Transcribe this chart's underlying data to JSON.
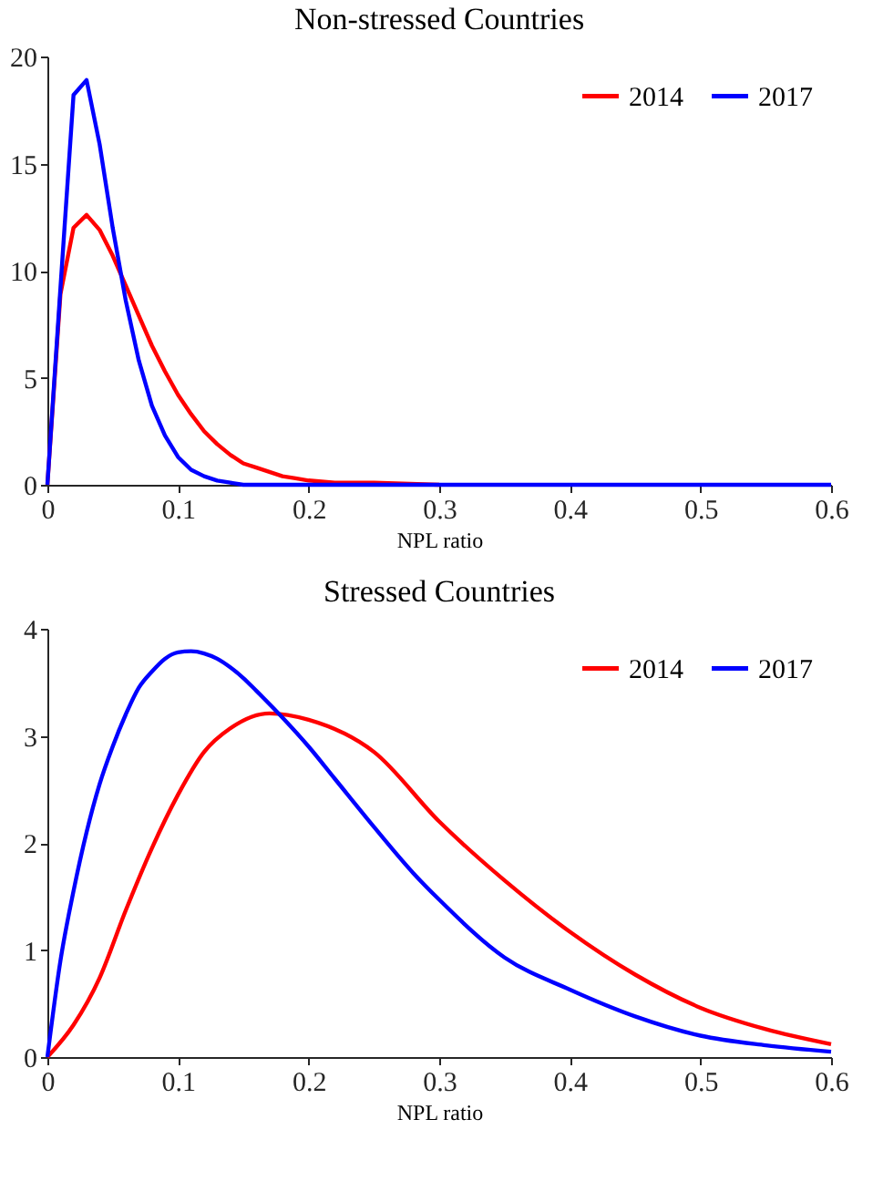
{
  "chart_data": [
    {
      "type": "line",
      "title": "Non-stressed Countries",
      "xlabel": "NPL ratio",
      "xlim": [
        0,
        0.6
      ],
      "xticks": [
        0,
        0.1,
        0.2,
        0.3,
        0.4,
        0.5,
        0.6
      ],
      "ylim": [
        0,
        20
      ],
      "yticks": [
        0,
        5,
        10,
        15,
        20
      ],
      "grid": false,
      "legend": "top right",
      "line_style": "solid",
      "x": [
        0,
        0.01,
        0.02,
        0.03,
        0.04,
        0.05,
        0.06,
        0.07,
        0.08,
        0.09,
        0.1,
        0.11,
        0.12,
        0.13,
        0.14,
        0.15,
        0.16,
        0.17,
        0.18,
        0.19,
        0.2,
        0.22,
        0.25,
        0.3,
        0.4,
        0.5,
        0.6
      ],
      "series": [
        {
          "name": "2014",
          "color": "#ff0000",
          "values": [
            0,
            8.9,
            12.0,
            12.6,
            11.9,
            10.7,
            9.3,
            7.9,
            6.5,
            5.3,
            4.2,
            3.3,
            2.5,
            1.9,
            1.4,
            1.0,
            0.8,
            0.6,
            0.4,
            0.3,
            0.2,
            0.1,
            0.1,
            0,
            null,
            null,
            null
          ]
        },
        {
          "name": "2017",
          "color": "#0000ff",
          "values": [
            0,
            9.2,
            18.2,
            18.9,
            15.9,
            12.0,
            8.6,
            5.8,
            3.7,
            2.3,
            1.3,
            0.7,
            0.4,
            0.2,
            0.1,
            0,
            0,
            0,
            0,
            0,
            0,
            0,
            0,
            0,
            0,
            0,
            0
          ]
        }
      ]
    },
    {
      "type": "line",
      "title": "Stressed Countries",
      "xlabel": "NPL ratio",
      "xlim": [
        0,
        0.6
      ],
      "xticks": [
        0,
        0.1,
        0.2,
        0.3,
        0.4,
        0.5,
        0.6
      ],
      "ylim": [
        0,
        4
      ],
      "yticks": [
        0,
        1,
        2,
        3,
        4
      ],
      "grid": false,
      "legend": "top right",
      "line_style": "solid",
      "series": [
        {
          "name": "2014",
          "color": "#ff0000",
          "x": [
            0,
            0.02,
            0.04,
            0.06,
            0.08,
            0.1,
            0.12,
            0.14,
            0.17,
            0.2,
            0.25,
            0.3,
            0.35,
            0.4,
            0.45,
            0.5,
            0.55,
            0.6
          ],
          "values": [
            0,
            0.3,
            0.74,
            1.37,
            1.95,
            2.45,
            2.85,
            3.07,
            3.21,
            3.15,
            2.85,
            2.2,
            1.65,
            1.17,
            0.77,
            0.46,
            0.26,
            0.12
          ]
        },
        {
          "name": "2017",
          "color": "#0000ff",
          "x": [
            0,
            0.01,
            0.02,
            0.03,
            0.04,
            0.05,
            0.06,
            0.07,
            0.08,
            0.09,
            0.1,
            0.11,
            0.12,
            0.13,
            0.14,
            0.15,
            0.16,
            0.18,
            0.2,
            0.22,
            0.25,
            0.28,
            0.3,
            0.35,
            0.4,
            0.45,
            0.5,
            0.55,
            0.6
          ],
          "values": [
            0,
            0.9,
            1.55,
            2.1,
            2.55,
            2.9,
            3.2,
            3.45,
            3.6,
            3.72,
            3.78,
            3.79,
            3.77,
            3.72,
            3.64,
            3.54,
            3.42,
            3.17,
            2.9,
            2.6,
            2.15,
            1.72,
            1.47,
            0.93,
            0.63,
            0.38,
            0.2,
            0.11,
            0.05
          ]
        }
      ]
    }
  ]
}
